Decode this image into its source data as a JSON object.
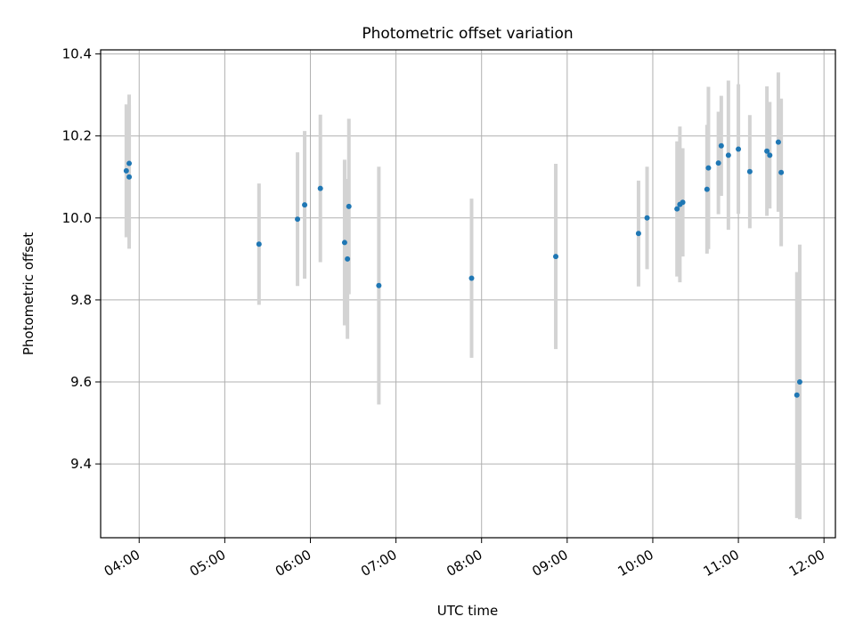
{
  "chart_data": {
    "type": "scatter",
    "title": "Photometric offset variation",
    "xlabel": "UTC time",
    "ylabel": "Photometric offset",
    "xlim": [
      "03:33",
      "12:08"
    ],
    "ylim": [
      9.22,
      10.41
    ],
    "grid": true,
    "x_ticks": [
      "04:00",
      "05:00",
      "06:00",
      "07:00",
      "08:00",
      "09:00",
      "10:00",
      "11:00",
      "12:00"
    ],
    "y_ticks": [
      "9.4",
      "9.6",
      "9.8",
      "10.0",
      "10.2",
      "10.4"
    ],
    "points": [
      {
        "x": "03:51",
        "y": 10.115,
        "err": 0.162
      },
      {
        "x": "03:53",
        "y": 10.133,
        "err": 0.168
      },
      {
        "x": "03:53",
        "y": 10.1,
        "err": 0.175
      },
      {
        "x": "05:24",
        "y": 9.936,
        "err": 0.148
      },
      {
        "x": "05:51",
        "y": 9.997,
        "err": 0.163
      },
      {
        "x": "05:56",
        "y": 10.032,
        "err": 0.18
      },
      {
        "x": "06:07",
        "y": 10.072,
        "err": 0.18
      },
      {
        "x": "06:24",
        "y": 9.94,
        "err": 0.202
      },
      {
        "x": "06:26",
        "y": 9.9,
        "err": 0.195
      },
      {
        "x": "06:27",
        "y": 10.028,
        "err": 0.214
      },
      {
        "x": "06:48",
        "y": 9.835,
        "err": 0.29
      },
      {
        "x": "07:53",
        "y": 9.853,
        "err": 0.194
      },
      {
        "x": "08:52",
        "y": 9.906,
        "err": 0.226
      },
      {
        "x": "09:50",
        "y": 9.962,
        "err": 0.129
      },
      {
        "x": "09:56",
        "y": 10.0,
        "err": 0.125
      },
      {
        "x": "10:17",
        "y": 10.022,
        "err": 0.165
      },
      {
        "x": "10:19",
        "y": 10.033,
        "err": 0.19
      },
      {
        "x": "10:21",
        "y": 10.038,
        "err": 0.132
      },
      {
        "x": "10:38",
        "y": 10.07,
        "err": 0.157
      },
      {
        "x": "10:39",
        "y": 10.122,
        "err": 0.198
      },
      {
        "x": "10:46",
        "y": 10.134,
        "err": 0.125
      },
      {
        "x": "10:48",
        "y": 10.176,
        "err": 0.122
      },
      {
        "x": "10:53",
        "y": 10.153,
        "err": 0.182
      },
      {
        "x": "11:00",
        "y": 10.168,
        "err": 0.158
      },
      {
        "x": "11:08",
        "y": 10.113,
        "err": 0.138
      },
      {
        "x": "11:20",
        "y": 10.163,
        "err": 0.158
      },
      {
        "x": "11:22",
        "y": 10.153,
        "err": 0.13
      },
      {
        "x": "11:28",
        "y": 10.185,
        "err": 0.17
      },
      {
        "x": "11:30",
        "y": 10.111,
        "err": 0.18
      },
      {
        "x": "11:41",
        "y": 9.568,
        "err": 0.3
      },
      {
        "x": "11:43",
        "y": 9.6,
        "err": 0.335
      }
    ],
    "colors": {
      "point": "#1f77b4",
      "errorbar": "#d3d3d3",
      "grid": "#b0b0b0"
    }
  }
}
